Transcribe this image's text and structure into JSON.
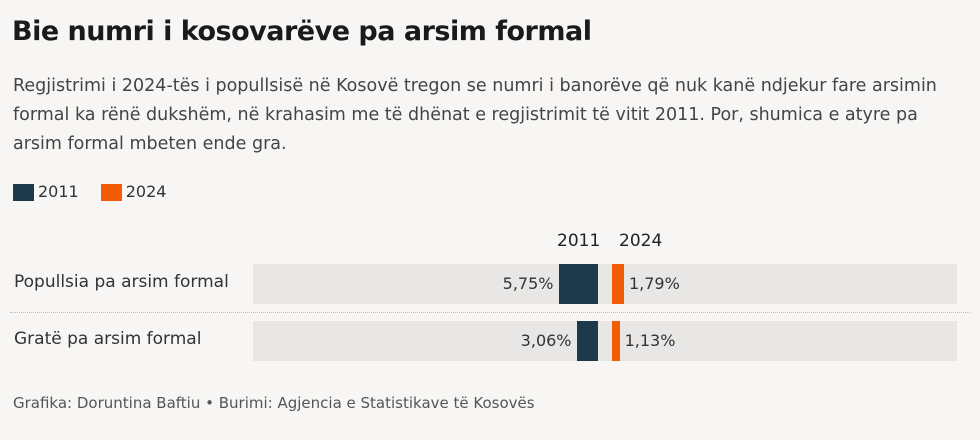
{
  "title": "Bie numri i kosovarëve pa arsim formal",
  "subtitle": "Regjistrimi i 2024-tës i popullsisë në Kosovë tregon se numri i banorëve që nuk kanë ndjekur fare arsimin formal ka rënë dukshëm, në krahasim me të dhënat e regjistrimit të vitit 2011. Por, shumica e atyre pa arsim formal mbeten ende gra.",
  "source": "Grafika: Doruntina Baftiu • Burimi: Agjencia e Statistikave të Kosovës",
  "chart_data": {
    "type": "bar",
    "title": "Bie numri i kosovarëve pa arsim formal",
    "categories": [
      "Popullsia pa arsim formal",
      "Gratë pa arsim formal"
    ],
    "series": [
      {
        "name": "2011",
        "color": "#1d3a4c",
        "values": [
          5.75,
          3.06
        ],
        "labels": [
          "5,75%",
          "3,06%"
        ]
      },
      {
        "name": "2024",
        "color": "#f25c05",
        "values": [
          1.79,
          1.13
        ],
        "labels": [
          "1,79%",
          "1,13%"
        ]
      }
    ],
    "unit": "%",
    "legend": "top-left"
  }
}
